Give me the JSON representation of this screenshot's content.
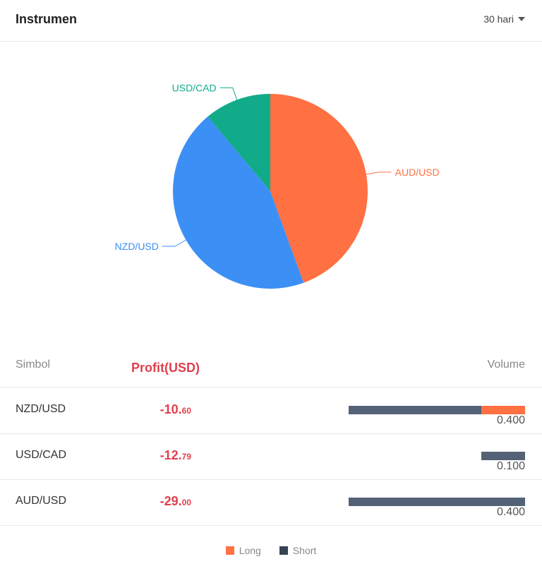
{
  "header": {
    "title": "Instrumen",
    "period": "30 hari"
  },
  "chart_data": {
    "type": "pie",
    "slices": [
      {
        "label": "AUD/USD",
        "value": 0.4,
        "color": "#ff7043"
      },
      {
        "label": "NZD/USD",
        "value": 0.4,
        "color": "#3b8ff5"
      },
      {
        "label": "USD/CAD",
        "value": 0.1,
        "color": "#12ab8a"
      }
    ]
  },
  "table": {
    "headers": {
      "symbol": "Simbol",
      "profit": "Profit(USD)",
      "volume": "Volume"
    },
    "max_volume": 0.4,
    "rows": [
      {
        "symbol": "NZD/USD",
        "profit_int": "-10.",
        "profit_dec": "60",
        "short": 0.3,
        "long": 0.1,
        "volume": "0.400"
      },
      {
        "symbol": "USD/CAD",
        "profit_int": "-12.",
        "profit_dec": "79",
        "short": 0.1,
        "long": 0.0,
        "volume": "0.100"
      },
      {
        "symbol": "AUD/USD",
        "profit_int": "-29.",
        "profit_dec": "00",
        "short": 0.4,
        "long": 0.0,
        "volume": "0.400"
      }
    ]
  },
  "legend": {
    "long": {
      "label": "Long",
      "color": "#ff7043"
    },
    "short": {
      "label": "Short",
      "color": "#354354"
    }
  }
}
